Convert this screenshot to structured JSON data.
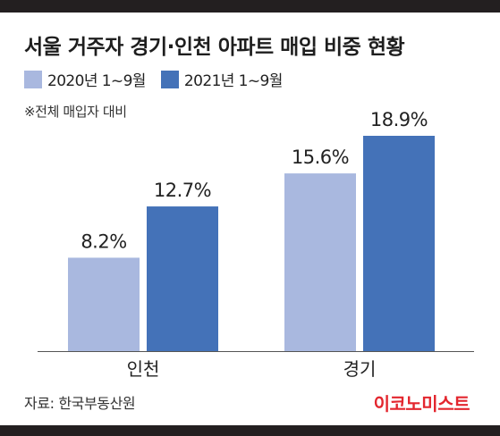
{
  "colors": {
    "frame": "#231f20",
    "series_2020": "#a9b8df",
    "series_2021": "#4472b8",
    "axis_line": "#555555",
    "brand": "#e3262e"
  },
  "header": {
    "title": "서울 거주자 경기·인천 아파트 매입 비중 현황",
    "note": "※전체 매입자 대비"
  },
  "footer": {
    "source": "자료: 한국부동산원",
    "brand": "이코노미스트"
  },
  "chart_data": {
    "type": "bar",
    "categories": [
      "인천",
      "경기"
    ],
    "series": [
      {
        "name": "2020년 1~9월",
        "values": [
          8.2,
          15.6
        ],
        "labels": [
          "8.2%",
          "15.6%"
        ],
        "color": "#a9b8df"
      },
      {
        "name": "2021년 1~9월",
        "values": [
          12.7,
          18.9
        ],
        "labels": [
          "12.7%",
          "18.9%"
        ],
        "color": "#4472b8"
      }
    ],
    "unit": "%",
    "legend_position": "top-left",
    "grid": false,
    "ylim": [
      0,
      18.9
    ]
  }
}
